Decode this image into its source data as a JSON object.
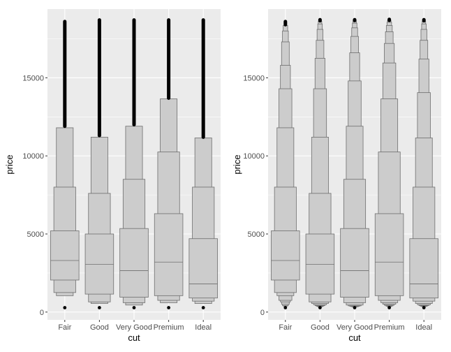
{
  "chart_data": [
    {
      "type": "letter-value",
      "xlabel": "cut",
      "ylabel": "price",
      "categories": [
        "Fair",
        "Good",
        "Very Good",
        "Premium",
        "Ideal"
      ],
      "yticks": [
        0,
        5000,
        10000,
        15000
      ],
      "ylim": [
        -500,
        19400
      ],
      "grid": true,
      "box_color": "#cccccc",
      "box_edge_color": "#6e6e6e",
      "outlier_color": "#000000",
      "series": [
        {
          "category": "Fair",
          "levels": [
            [
              2050,
              5200
            ],
            [
              1250,
              8000
            ],
            [
              1050,
              11800
            ]
          ],
          "median": 3300,
          "outliers": {
            "from": 11900,
            "to": 18600
          }
        },
        {
          "category": "Good",
          "levels": [
            [
              1150,
              5000
            ],
            [
              650,
              7600
            ],
            [
              550,
              11200
            ]
          ],
          "median": 3050,
          "outliers": {
            "from": 11300,
            "to": 18700
          }
        },
        {
          "category": "Very Good",
          "levels": [
            [
              950,
              5350
            ],
            [
              600,
              8500
            ],
            [
              450,
              11900
            ]
          ],
          "median": 2650,
          "outliers": {
            "from": 12000,
            "to": 18700
          }
        },
        {
          "category": "Premium",
          "levels": [
            [
              1050,
              6300
            ],
            [
              750,
              10250
            ],
            [
              600,
              13650
            ]
          ],
          "median": 3200,
          "outliers": {
            "from": 13700,
            "to": 18700
          }
        },
        {
          "category": "Ideal",
          "levels": [
            [
              900,
              4700
            ],
            [
              700,
              8000
            ],
            [
              550,
              11150
            ]
          ],
          "median": 1800,
          "outliers": {
            "from": 11200,
            "to": 18700
          }
        }
      ]
    },
    {
      "type": "letter-value",
      "xlabel": "cut",
      "ylabel": "price",
      "categories": [
        "Fair",
        "Good",
        "Very Good",
        "Premium",
        "Ideal"
      ],
      "yticks": [
        0,
        5000,
        10000,
        15000
      ],
      "ylim": [
        -500,
        19400
      ],
      "grid": true,
      "box_color": "#cccccc",
      "box_edge_color": "#6e6e6e",
      "outlier_color": "#000000",
      "series": [
        {
          "category": "Fair",
          "levels": [
            [
              2050,
              5200
            ],
            [
              1250,
              8000
            ],
            [
              1050,
              11800
            ],
            [
              750,
              14300
            ],
            [
              650,
              15800
            ],
            [
              500,
              17300
            ],
            [
              420,
              18000
            ],
            [
              380,
              18350
            ]
          ],
          "median": 3300,
          "outliers": {
            "from": 18400,
            "to": 18600
          }
        },
        {
          "category": "Good",
          "levels": [
            [
              1150,
              5000
            ],
            [
              650,
              7600
            ],
            [
              550,
              11200
            ],
            [
              470,
              14300
            ],
            [
              420,
              16250
            ],
            [
              380,
              17400
            ],
            [
              360,
              18100
            ],
            [
              340,
              18450
            ],
            [
              330,
              18620
            ]
          ],
          "median": 3050,
          "outliers": {
            "from": 18650,
            "to": 18720
          }
        },
        {
          "category": "Very Good",
          "levels": [
            [
              950,
              5350
            ],
            [
              600,
              8500
            ],
            [
              450,
              11900
            ],
            [
              400,
              14800
            ],
            [
              370,
              16600
            ],
            [
              350,
              17650
            ],
            [
              340,
              18200
            ],
            [
              330,
              18500
            ],
            [
              325,
              18640
            ]
          ],
          "median": 2650,
          "outliers": {
            "from": 18670,
            "to": 18720
          }
        },
        {
          "category": "Premium",
          "levels": [
            [
              1050,
              6300
            ],
            [
              750,
              10250
            ],
            [
              600,
              13650
            ],
            [
              500,
              15950
            ],
            [
              440,
              17200
            ],
            [
              400,
              17950
            ],
            [
              380,
              18350
            ],
            [
              360,
              18560
            ],
            [
              350,
              18660
            ]
          ],
          "median": 3200,
          "outliers": {
            "from": 18680,
            "to": 18740
          }
        },
        {
          "category": "Ideal",
          "levels": [
            [
              900,
              4700
            ],
            [
              700,
              8000
            ],
            [
              550,
              11150
            ],
            [
              470,
              14050
            ],
            [
              420,
              16200
            ],
            [
              390,
              17400
            ],
            [
              370,
              18100
            ],
            [
              355,
              18450
            ],
            [
              345,
              18620
            ]
          ],
          "median": 1800,
          "outliers": {
            "from": 18650,
            "to": 18720
          }
        }
      ]
    }
  ]
}
